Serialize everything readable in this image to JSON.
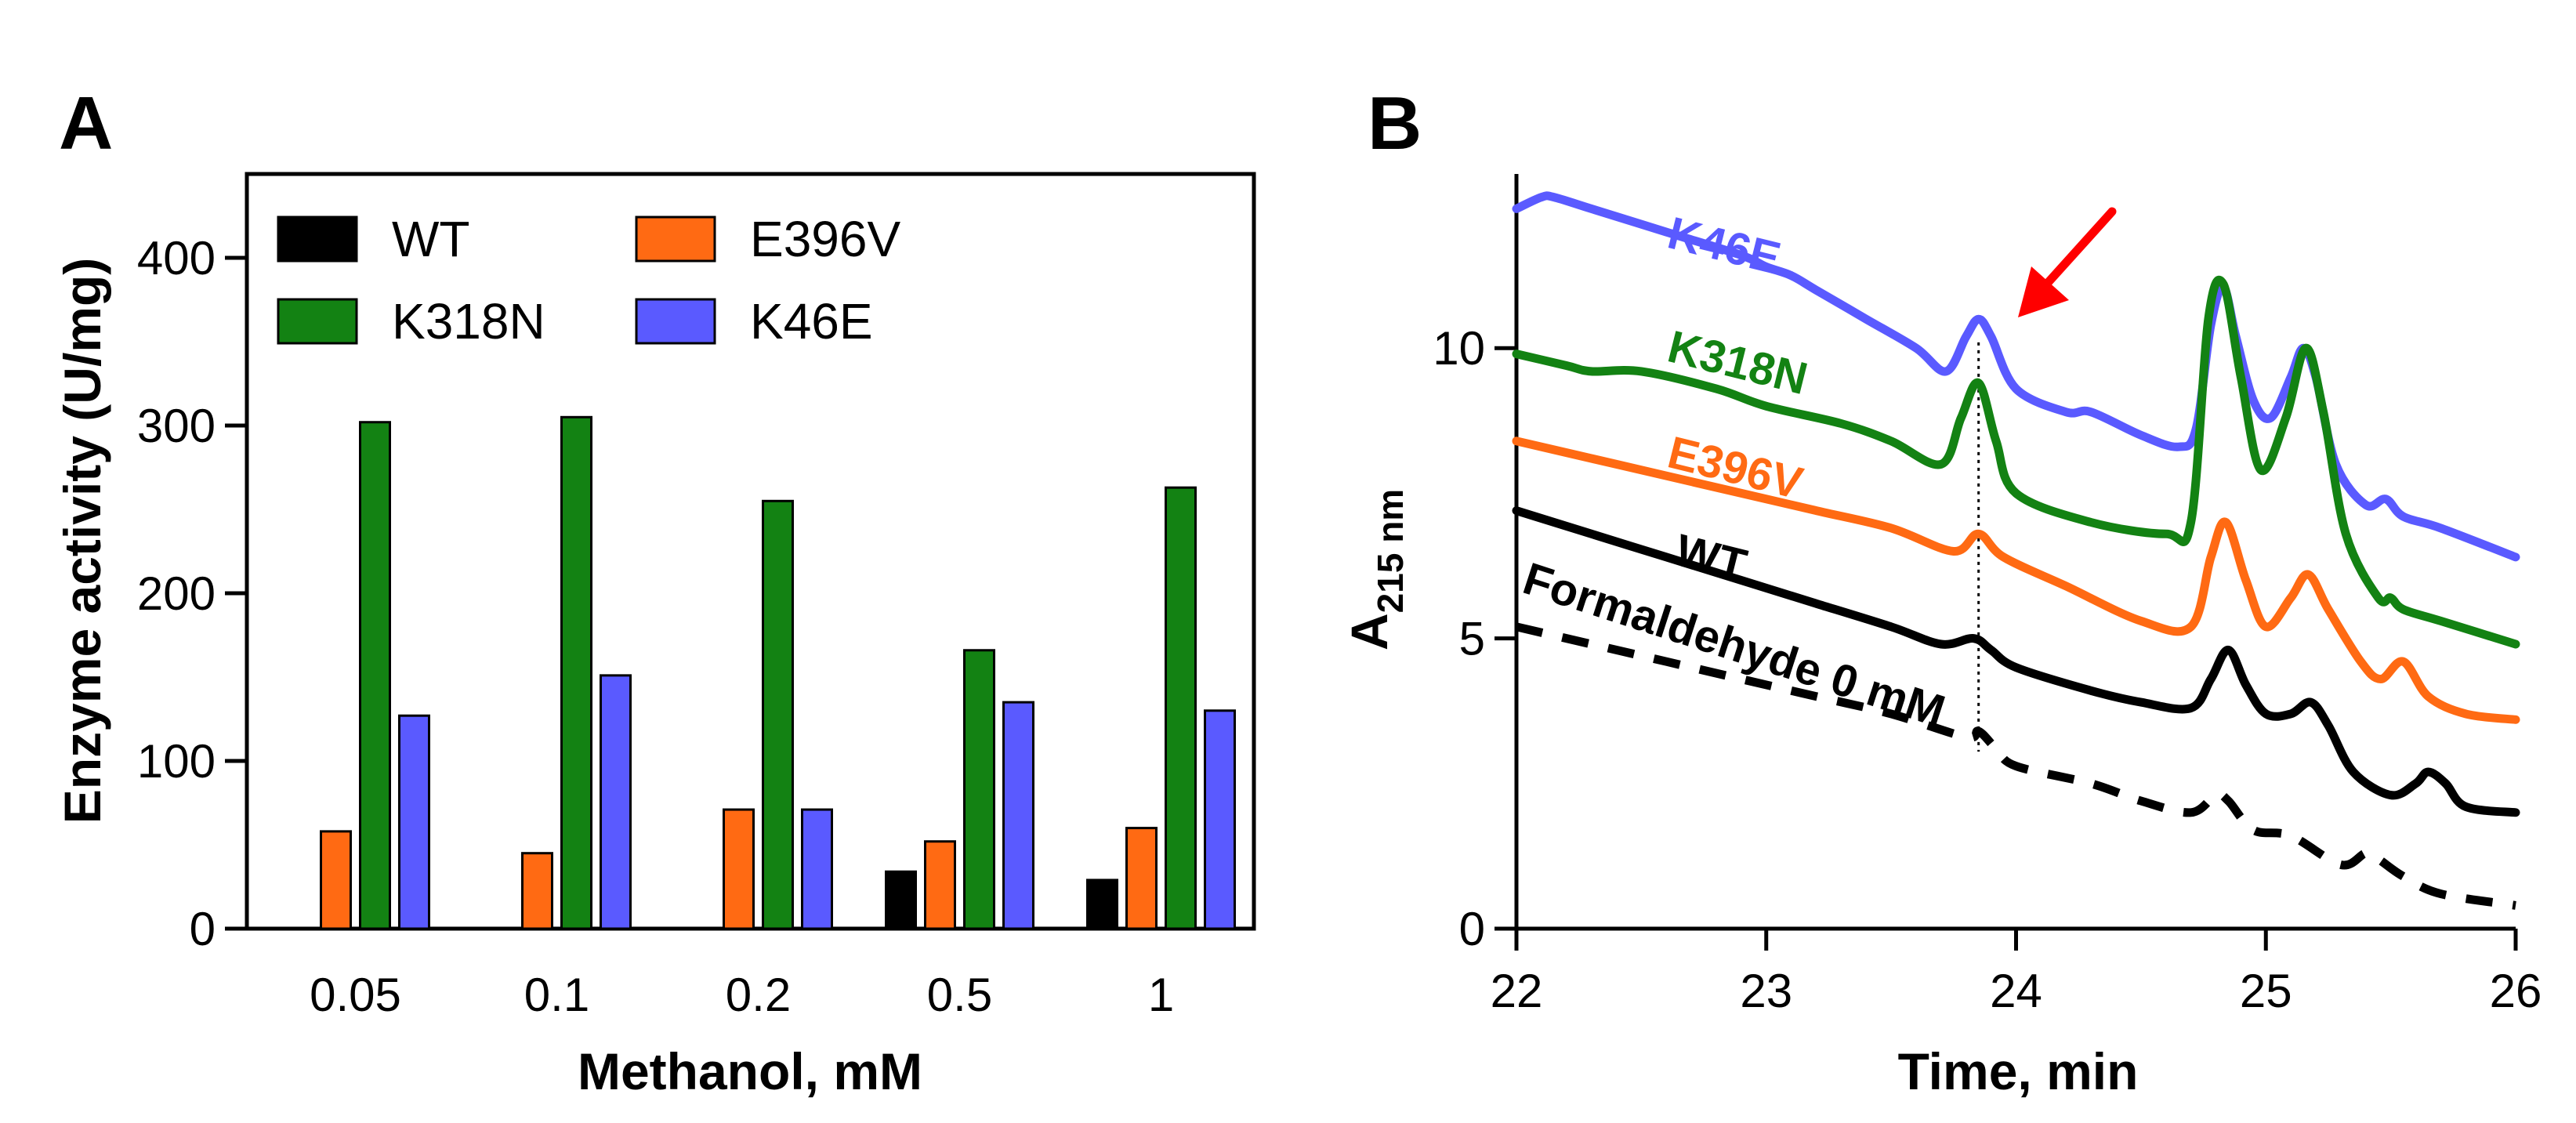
{
  "panels": {
    "a": {
      "letter": "A"
    },
    "b": {
      "letter": "B"
    }
  },
  "colors": {
    "WT": "#000000",
    "E396V": "#ff6a13",
    "K318N": "#138213",
    "K46E": "#5a5aff",
    "Formaldehyde 0 mM": "#000000",
    "arrow": "#ff0000"
  },
  "chart_data": [
    {
      "type": "bar",
      "panel": "A",
      "title": "",
      "xlabel": "Methanol, mM",
      "ylabel": "Enzyme activity (U/mg)",
      "ylim": [
        0,
        450
      ],
      "yticks": [
        0,
        100,
        200,
        300,
        400
      ],
      "categories": [
        "0.05",
        "0.1",
        "0.2",
        "0.5",
        "1"
      ],
      "series": [
        {
          "name": "WT",
          "values": [
            0,
            0,
            0,
            34,
            29
          ]
        },
        {
          "name": "E396V",
          "values": [
            58,
            45,
            71,
            52,
            60
          ]
        },
        {
          "name": "K318N",
          "values": [
            302,
            305,
            255,
            166,
            263
          ]
        },
        {
          "name": "K46E",
          "values": [
            127,
            151,
            71,
            135,
            130
          ]
        }
      ],
      "legend": {
        "position": "top-left",
        "columns": 2
      }
    },
    {
      "type": "line",
      "panel": "B",
      "title": "",
      "xlabel": "Time, min",
      "ylabel": "A",
      "ylabel_subscript": "215 nm",
      "xlim": [
        22,
        26
      ],
      "ylim": [
        0,
        13
      ],
      "xticks": [
        22,
        23,
        24,
        25,
        26
      ],
      "yticks": [
        0,
        5,
        10
      ],
      "reference_line": {
        "x": 23.85,
        "style": "dotted"
      },
      "arrow": {
        "points_to_x": 23.85,
        "color": "#ff0000"
      },
      "series": [
        {
          "name": "K46E",
          "label": "K46E",
          "style": "solid",
          "x": [
            22,
            22.1,
            22.15,
            22.3,
            22.6,
            22.9,
            23.0,
            23.1,
            23.2,
            23.4,
            23.6,
            23.72,
            23.8,
            23.85,
            23.9,
            24.0,
            24.2,
            24.3,
            24.5,
            24.65,
            24.72,
            24.78,
            24.83,
            24.88,
            24.95,
            25.02,
            25.1,
            25.15,
            25.2,
            25.28,
            25.4,
            25.48,
            25.55,
            25.7,
            26.0
          ],
          "y": [
            12.4,
            12.6,
            12.6,
            12.4,
            12.0,
            11.6,
            11.4,
            11.25,
            11.0,
            10.5,
            10.0,
            9.6,
            10.2,
            10.5,
            10.2,
            9.3,
            8.9,
            8.9,
            8.5,
            8.3,
            8.6,
            10.4,
            11.05,
            10.2,
            9.1,
            8.8,
            9.5,
            10.0,
            9.5,
            8.0,
            7.3,
            7.4,
            7.1,
            6.9,
            6.4
          ]
        },
        {
          "name": "K318N",
          "label": "K318N",
          "style": "solid",
          "x": [
            22,
            22.2,
            22.3,
            22.5,
            22.8,
            23.0,
            23.3,
            23.5,
            23.7,
            23.78,
            23.85,
            23.92,
            24.0,
            24.3,
            24.6,
            24.7,
            24.77,
            24.83,
            24.9,
            24.98,
            25.08,
            25.16,
            25.23,
            25.32,
            25.45,
            25.5,
            25.55,
            25.7,
            26.0
          ],
          "y": [
            9.9,
            9.7,
            9.6,
            9.6,
            9.3,
            9.0,
            8.7,
            8.4,
            8.0,
            8.8,
            9.4,
            8.4,
            7.5,
            7.0,
            6.8,
            7.0,
            10.5,
            11.1,
            9.5,
            7.9,
            8.8,
            10.0,
            8.9,
            6.8,
            5.7,
            5.7,
            5.5,
            5.3,
            4.9
          ]
        },
        {
          "name": "E396V",
          "label": "E396V",
          "style": "solid",
          "x": [
            22,
            22.3,
            22.6,
            22.9,
            23.2,
            23.5,
            23.75,
            23.85,
            23.95,
            24.2,
            24.5,
            24.7,
            24.78,
            24.84,
            24.92,
            25.0,
            25.1,
            25.17,
            25.25,
            25.38,
            25.46,
            25.55,
            25.65,
            25.8,
            26.0
          ],
          "y": [
            8.4,
            8.1,
            7.8,
            7.5,
            7.2,
            6.9,
            6.5,
            6.8,
            6.4,
            5.9,
            5.3,
            5.2,
            6.4,
            7.0,
            6.0,
            5.2,
            5.7,
            6.1,
            5.5,
            4.6,
            4.3,
            4.6,
            4.0,
            3.7,
            3.6
          ]
        },
        {
          "name": "WT",
          "label": "WT",
          "style": "solid",
          "x": [
            22,
            22.3,
            22.6,
            22.9,
            23.2,
            23.5,
            23.7,
            23.83,
            23.9,
            24.0,
            24.3,
            24.5,
            24.7,
            24.78,
            24.85,
            24.92,
            25.0,
            25.1,
            25.18,
            25.25,
            25.35,
            25.5,
            25.6,
            25.65,
            25.72,
            25.8,
            26.0
          ],
          "y": [
            7.2,
            6.8,
            6.4,
            6.0,
            5.6,
            5.2,
            4.9,
            5.0,
            4.8,
            4.5,
            4.1,
            3.9,
            3.8,
            4.3,
            4.8,
            4.2,
            3.7,
            3.7,
            3.9,
            3.5,
            2.7,
            2.3,
            2.5,
            2.7,
            2.5,
            2.1,
            2.0
          ]
        },
        {
          "name": "Formaldehyde 0 mM",
          "label": "Formaldehyde 0 mM",
          "style": "dashed",
          "x": [
            22,
            22.3,
            22.6,
            22.9,
            23.2,
            23.5,
            23.8,
            23.85,
            23.92,
            24.0,
            24.3,
            24.5,
            24.7,
            24.8,
            24.85,
            24.95,
            25.1,
            25.3,
            25.4,
            25.45,
            25.55,
            25.7,
            26.0
          ],
          "y": [
            5.2,
            4.9,
            4.6,
            4.3,
            4.0,
            3.7,
            3.3,
            3.4,
            3.1,
            2.8,
            2.5,
            2.2,
            2.0,
            2.3,
            2.2,
            1.7,
            1.6,
            1.1,
            1.3,
            1.2,
            0.9,
            0.6,
            0.4
          ]
        }
      ]
    }
  ]
}
